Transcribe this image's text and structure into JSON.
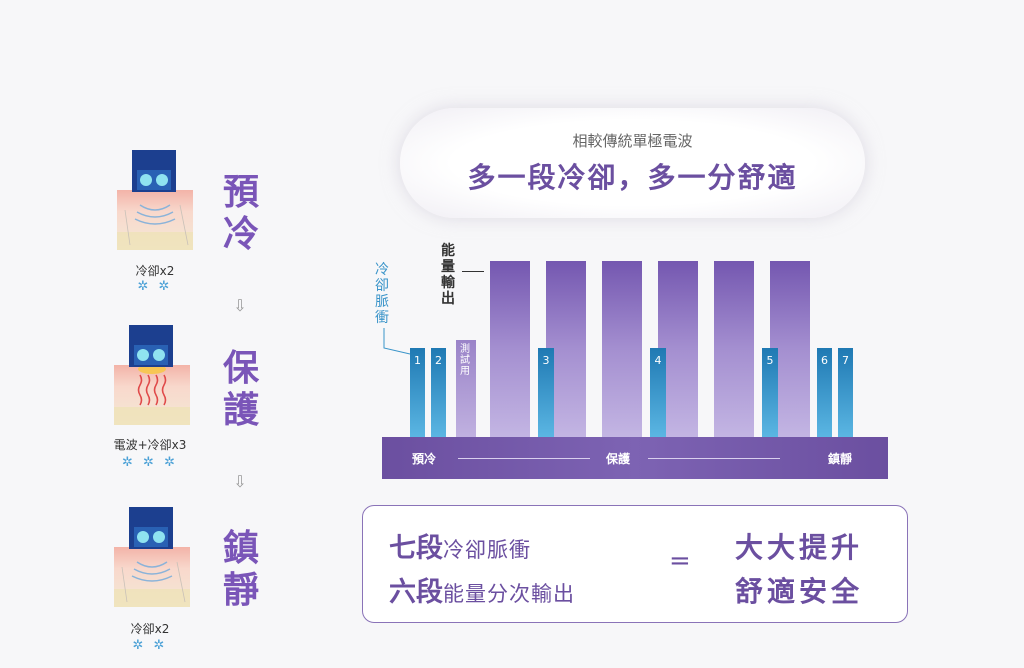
{
  "steps": [
    {
      "title": "預冷",
      "caption": "冷卻x2",
      "snow": "✲ ✲"
    },
    {
      "title": "保護",
      "caption": "電波+冷卻x3",
      "snow": "✲ ✲ ✲"
    },
    {
      "title": "鎮靜",
      "caption": "冷卻x2",
      "snow": "✲ ✲"
    }
  ],
  "arrow": "⇩",
  "header": {
    "subtitle": "相較傳統單極電波",
    "title": "多一段冷卻，多一分舒適"
  },
  "legend": {
    "cooling": "冷卻脈衝",
    "energy": "能量輸出",
    "test": "測試用"
  },
  "phases": [
    "預冷",
    "保護",
    "鎮靜"
  ],
  "summary": {
    "row1_bold": "七段",
    "row1_light": "冷卻脈衝",
    "row2_bold": "六段",
    "row2_light": "能量分次輸出",
    "equals": "=",
    "result1": "大大提升",
    "result2": "舒適安全"
  },
  "colors": {
    "accent": "#6b4fa0",
    "cooling_bar": "#2f8ec4",
    "energy_bar": "#8b70c1",
    "test_bar": "#a894d0"
  },
  "chart_data": {
    "type": "bar",
    "cooling_pulses": [
      "1",
      "2",
      "3",
      "4",
      "5",
      "6",
      "7"
    ],
    "energy_outputs": 6,
    "test_pulses": 1
  }
}
